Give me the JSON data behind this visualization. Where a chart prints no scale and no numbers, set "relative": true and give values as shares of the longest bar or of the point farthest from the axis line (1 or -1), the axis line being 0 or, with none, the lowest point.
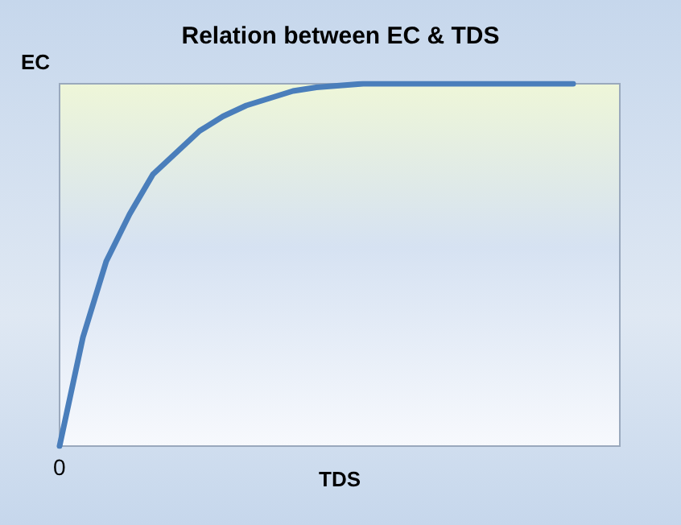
{
  "chart_data": {
    "type": "line",
    "title": "Relation between EC & TDS",
    "xlabel": "TDS",
    "ylabel": "EC",
    "annotations": [
      "0"
    ],
    "relative": true,
    "tick_labels": false,
    "grid": false,
    "marker": "none",
    "line_style": "solid",
    "categories": [
      null,
      null,
      null,
      null,
      null,
      null,
      null,
      null,
      null,
      null,
      null,
      null,
      null,
      null,
      null,
      null,
      null,
      null,
      null,
      null,
      null,
      null,
      null
    ],
    "series": [
      {
        "color": "#4a7ebb",
        "values": [
          0,
          0.3,
          0.51,
          0.64,
          0.75,
          0.81,
          0.87,
          0.91,
          0.94,
          0.96,
          0.98,
          0.99,
          0.995,
          1,
          1,
          1,
          1,
          1,
          1,
          1,
          1,
          1,
          1
        ]
      }
    ]
  }
}
